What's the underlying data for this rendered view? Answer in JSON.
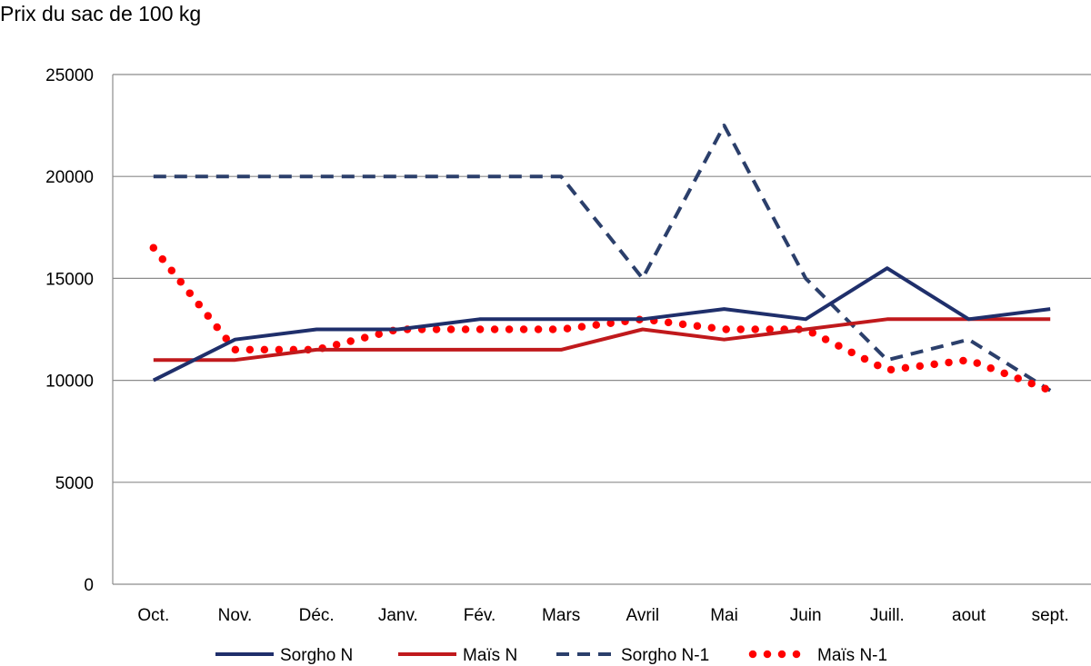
{
  "chart_data": {
    "type": "line",
    "ylabel": "Prix du sac de 100 kg",
    "ylim": [
      0,
      25000
    ],
    "yticks": [
      "0",
      "5000",
      "10000",
      "15000",
      "20000",
      "25000"
    ],
    "categories": [
      "Oct.",
      "Nov.",
      "Déc.",
      "Janv.",
      "Fév.",
      "Mars",
      "Avril",
      "Mai",
      "Juin",
      "Juill.",
      "aout",
      "sept."
    ],
    "grid": true,
    "legend_position": "bottom",
    "series": [
      {
        "name": "Sorgho N",
        "style": "solid",
        "color": "#1f2f6b",
        "values": [
          10000,
          12000,
          12500,
          12500,
          13000,
          13000,
          13000,
          13500,
          13000,
          15500,
          13000,
          13500
        ]
      },
      {
        "name": "Maïs N",
        "style": "solid",
        "color": "#c0191c",
        "values": [
          11000,
          11000,
          11500,
          11500,
          11500,
          11500,
          12500,
          12000,
          12500,
          13000,
          13000,
          13000
        ]
      },
      {
        "name": "Sorgho N-1",
        "style": "dashed",
        "color": "#2b3f6b",
        "values": [
          20000,
          20000,
          20000,
          20000,
          20000,
          20000,
          15000,
          22500,
          15000,
          11000,
          12000,
          9500
        ]
      },
      {
        "name": "Maïs N-1",
        "style": "dotted",
        "color": "#ff0000",
        "values": [
          16500,
          11500,
          11500,
          12500,
          12500,
          12500,
          13000,
          12500,
          12500,
          10500,
          11000,
          9500
        ]
      }
    ]
  }
}
